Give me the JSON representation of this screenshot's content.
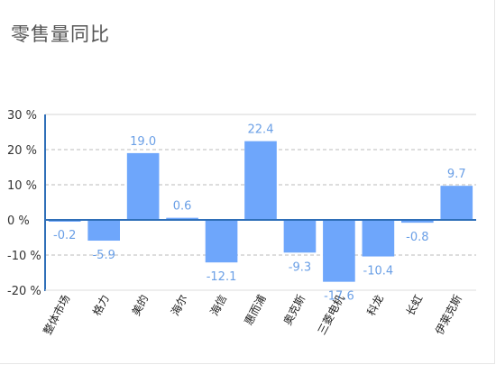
{
  "header": {
    "title": "零售量同比"
  },
  "chart_data": {
    "type": "bar",
    "title": "零售量同比",
    "categories": [
      "整体市场",
      "格力",
      "美的",
      "海尔",
      "海信",
      "惠而浦",
      "奥克斯",
      "三菱电机",
      "科龙",
      "长虹",
      "伊莱克斯"
    ],
    "values": [
      -0.2,
      -5.9,
      19.0,
      0.6,
      -12.1,
      22.4,
      -9.3,
      -17.6,
      -10.4,
      -0.8,
      9.7
    ],
    "value_labels": [
      "-0.2",
      "-5.9",
      "19.0",
      "0.6",
      "-12.1",
      "22.4",
      "-9.3",
      "-17.6",
      "-10.4",
      "-0.8",
      "9.7"
    ],
    "ylim": [
      -20,
      30
    ],
    "yticks": [
      30,
      20,
      10,
      0,
      -10,
      -20
    ],
    "ytick_labels": [
      "30 %",
      "20 %",
      "10 %",
      "0 %",
      "-10 %",
      "-20 %"
    ],
    "grid": "dashed horizontal",
    "colors": {
      "bar": "#6ea6fb",
      "axis": "#2f6fb8",
      "label": "#6a9fe6",
      "grid": "#bbbbbb"
    }
  }
}
